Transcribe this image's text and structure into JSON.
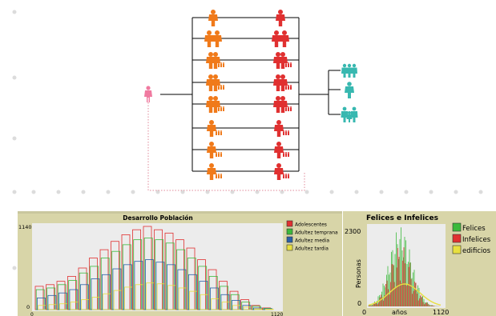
{
  "diagram": {
    "origin_icon": "pink-person-icon",
    "left_icons": [
      "orange-person-icon",
      "orange-couple-icon",
      "orange-family-icon",
      "orange-family-icon",
      "orange-family-icon",
      "orange-person-family-icon",
      "orange-person-family-icon",
      "orange-person-family-icon"
    ],
    "right_icons": [
      "red-person-icon",
      "red-couple-icon",
      "red-family-icon",
      "red-family-icon",
      "red-family-icon",
      "red-person-family-icon",
      "red-person-family-icon",
      "red-person-family-icon"
    ],
    "destination_icons": [
      "cyan-group-icon",
      "cyan-person-icon",
      "cyan-group-icon"
    ],
    "colors": {
      "orange": "#f07a1a",
      "red": "#e03030",
      "pink": "#f07aa0",
      "cyan": "#38b8b0"
    }
  },
  "plot1": {
    "title": "Desarrollo Población",
    "y_max_label": "1140",
    "y_min_label": "0",
    "x_min_label": "0",
    "x_max_label": "1120",
    "legend": [
      {
        "label": "Adolescentes",
        "color": "#e03030"
      },
      {
        "label": "Adultez temprana",
        "color": "#3cba3c"
      },
      {
        "label": "Adultez media",
        "color": "#2a5fa8"
      },
      {
        "label": "Adultez tardia",
        "color": "#e8e040"
      }
    ]
  },
  "plot2": {
    "title": "Felices e Infelices",
    "y_max_label": "2300",
    "y_min_label": "0",
    "x_min_label": "0",
    "x_max_label": "1120",
    "xlabel": "años",
    "ylabel": "Personas",
    "legend": [
      {
        "label": "Felices",
        "color": "#3cba3c"
      },
      {
        "label": "Infelices",
        "color": "#e03030"
      },
      {
        "label": "edificios",
        "color": "#e8e040"
      }
    ]
  }
}
